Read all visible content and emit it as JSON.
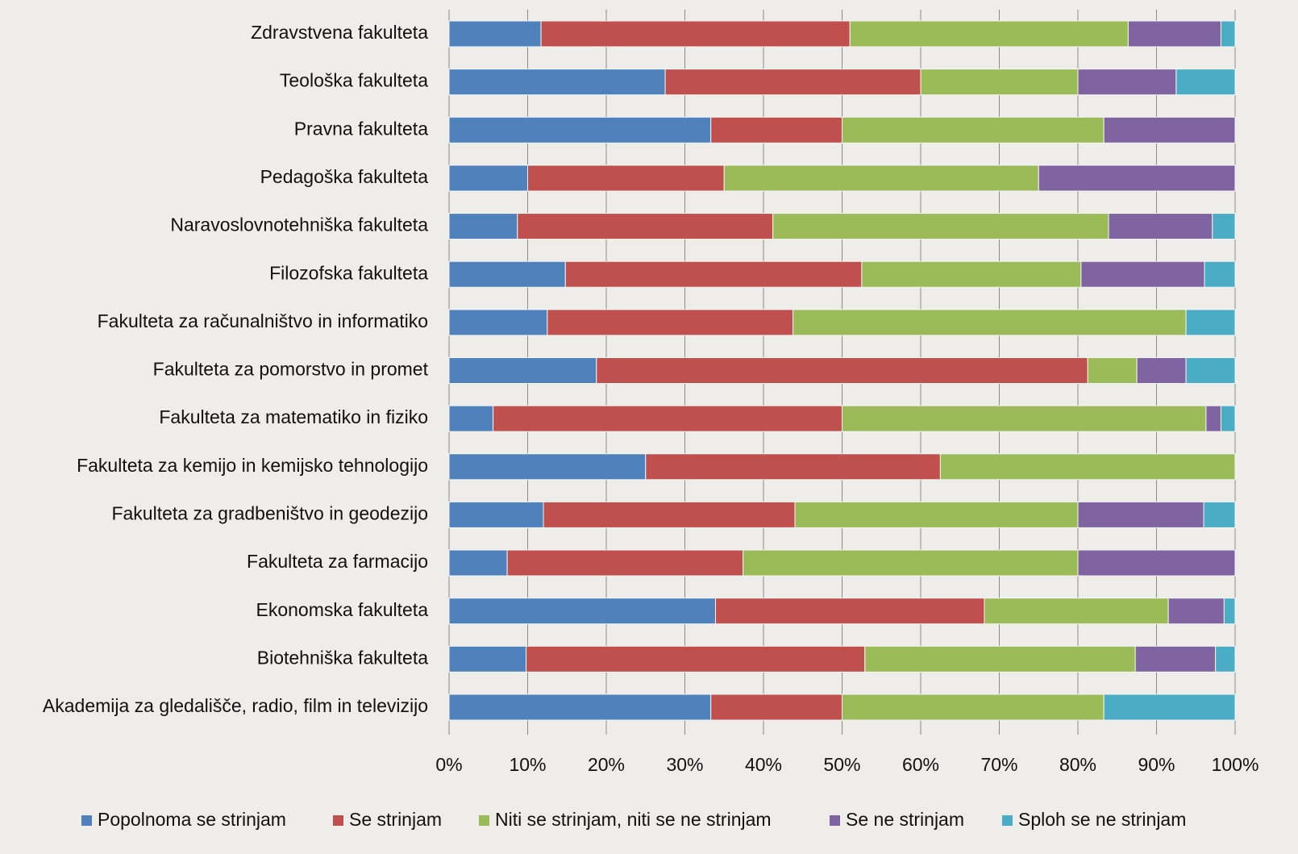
{
  "chart_data": {
    "type": "stacked_bar_horizontal",
    "categories": [
      "Zdravstvena fakulteta",
      "Teološka fakulteta",
      "Pravna fakulteta",
      "Pedagoška fakulteta",
      "Naravoslovnotehniška fakulteta",
      "Filozofska fakulteta",
      "Fakulteta za računalništvo in informatiko",
      "Fakulteta za pomorstvo in promet",
      "Fakulteta za matematiko in fiziko",
      "Fakulteta za kemijo in kemijsko tehnologijo",
      "Fakulteta za gradbeništvo in geodezijo",
      "Fakulteta za farmacijo",
      "Ekonomska fakulteta",
      "Biotehniška fakulteta",
      "Akademija za gledališče, radio, film in televizijo"
    ],
    "series": [
      {
        "name": "Popolnoma se strinjam",
        "color": "#4f81bd",
        "values": [
          11.7,
          27.5,
          33.3,
          10,
          8.7,
          14.8,
          12.5,
          18.75,
          5.6,
          25,
          12,
          7.4,
          33.9,
          9.8,
          33.3
        ]
      },
      {
        "name": "Se strinjam",
        "color": "#c0504d",
        "values": [
          39.3,
          32.5,
          16.7,
          25,
          32.5,
          37.7,
          31.25,
          62.5,
          44.4,
          37.5,
          32,
          30,
          34.2,
          43.1,
          16.7
        ]
      },
      {
        "name": "Niti se strinjam, niti se ne strinjam",
        "color": "#9bbb59",
        "values": [
          35.4,
          20,
          33.3,
          40,
          42.7,
          27.9,
          50,
          6.25,
          46.3,
          37.5,
          36,
          42.6,
          23.4,
          34.4,
          33.3
        ]
      },
      {
        "name": "Se ne strinjam",
        "color": "#8064a2",
        "values": [
          11.8,
          12.5,
          16.7,
          25,
          13.2,
          15.7,
          0,
          6.25,
          1.9,
          0,
          16,
          20,
          7.1,
          10.2,
          0
        ]
      },
      {
        "name": "Sploh se ne strinjam",
        "color": "#4bacc6",
        "values": [
          1.8,
          7.5,
          0,
          0,
          2.9,
          3.9,
          6.25,
          6.25,
          1.8,
          0,
          4,
          0,
          1.4,
          2.5,
          16.7
        ]
      }
    ],
    "xlim": [
      0,
      100
    ],
    "xticks": [
      {
        "value": 0,
        "label": "0%"
      },
      {
        "value": 10,
        "label": "10%"
      },
      {
        "value": 20,
        "label": "20%"
      },
      {
        "value": 30,
        "label": "30%"
      },
      {
        "value": 40,
        "label": "40%"
      },
      {
        "value": 50,
        "label": "50%"
      },
      {
        "value": 60,
        "label": "60%"
      },
      {
        "value": 70,
        "label": "70%"
      },
      {
        "value": 80,
        "label": "80%"
      },
      {
        "value": 90,
        "label": "90%"
      },
      {
        "value": 100,
        "label": "100%"
      }
    ],
    "grid": true,
    "legend": "bottom"
  }
}
